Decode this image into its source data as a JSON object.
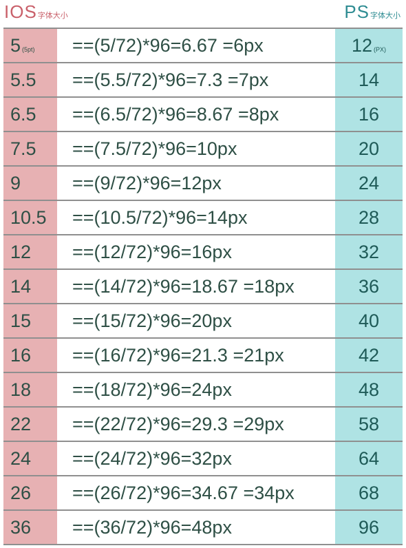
{
  "header": {
    "ios_title": "IOS",
    "ios_subtitle": "字体大小",
    "ps_title": "PS",
    "ps_subtitle": "字体大小"
  },
  "rows": [
    {
      "ios": "5",
      "ios_unit": "(5pt)",
      "formula": "==(5/72)*96=6.67  =6px",
      "ps": "12",
      "ps_unit": "(PX)"
    },
    {
      "ios": "5.5",
      "ios_unit": "",
      "formula": "==(5.5/72)*96=7.3  =7px",
      "ps": "14",
      "ps_unit": ""
    },
    {
      "ios": "6.5",
      "ios_unit": "",
      "formula": "==(6.5/72)*96=8.67  =8px",
      "ps": "16",
      "ps_unit": ""
    },
    {
      "ios": "7.5",
      "ios_unit": "",
      "formula": "==(7.5/72)*96=10px",
      "ps": "20",
      "ps_unit": ""
    },
    {
      "ios": "9",
      "ios_unit": "",
      "formula": "==(9/72)*96=12px",
      "ps": "24",
      "ps_unit": ""
    },
    {
      "ios": "10.5",
      "ios_unit": "",
      "formula": "==(10.5/72)*96=14px",
      "ps": "28",
      "ps_unit": ""
    },
    {
      "ios": "12",
      "ios_unit": "",
      "formula": "==(12/72)*96=16px",
      "ps": "32",
      "ps_unit": ""
    },
    {
      "ios": "14",
      "ios_unit": "",
      "formula": "==(14/72)*96=18.67  =18px",
      "ps": "36",
      "ps_unit": ""
    },
    {
      "ios": "15",
      "ios_unit": "",
      "formula": "==(15/72)*96=20px",
      "ps": "40",
      "ps_unit": ""
    },
    {
      "ios": "16",
      "ios_unit": "",
      "formula": "==(16/72)*96=21.3  =21px",
      "ps": "42",
      "ps_unit": ""
    },
    {
      "ios": "18",
      "ios_unit": "",
      "formula": "==(18/72)*96=24px",
      "ps": "48",
      "ps_unit": ""
    },
    {
      "ios": "22",
      "ios_unit": "",
      "formula": "==(22/72)*96=29.3  =29px",
      "ps": "58",
      "ps_unit": ""
    },
    {
      "ios": "24",
      "ios_unit": "",
      "formula": "==(24/72)*96=32px",
      "ps": "64",
      "ps_unit": ""
    },
    {
      "ios": "26",
      "ios_unit": "",
      "formula": "==(26/72)*96=34.67  =34px",
      "ps": "68",
      "ps_unit": ""
    },
    {
      "ios": "36",
      "ios_unit": "",
      "formula": "==(36/72)*96=48px",
      "ps": "96",
      "ps_unit": ""
    }
  ],
  "colors": {
    "ios_column": "#e7b1b3",
    "ps_column": "#afe3e4",
    "ios_title": "#c9606a",
    "ps_title": "#2e8c92",
    "grid": "#8f8f8f"
  }
}
